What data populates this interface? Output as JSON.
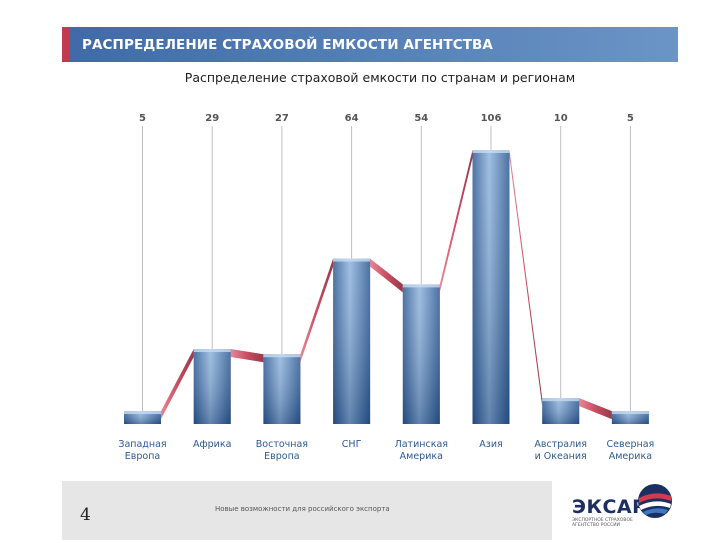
{
  "header": {
    "title": "РАСПРЕДЕЛЕНИЕ СТРАХОВОЙ ЕМКОСТИ АГЕНТСТВА"
  },
  "chart_data": {
    "type": "bar",
    "title": "Распределение страховой емкости по странам и регионам",
    "categories": [
      [
        "Западная",
        "Европа"
      ],
      [
        "Африка"
      ],
      [
        "Восточная",
        "Европа"
      ],
      [
        "СНГ"
      ],
      [
        "Латинская",
        "Америка"
      ],
      [
        "Азия"
      ],
      [
        "Австралия",
        "и Океания"
      ],
      [
        "Северная",
        "Америка"
      ]
    ],
    "values": [
      5,
      29,
      27,
      64,
      54,
      106,
      10,
      5
    ],
    "value_labels": [
      "5",
      "29",
      "27",
      "64",
      "54",
      "106",
      "10",
      "5"
    ],
    "ylim": [
      0,
      106
    ],
    "grid": false,
    "colors": {
      "bar": "#4f7fb8",
      "ribbon": "#c23a50",
      "leader": "#bfbfbf",
      "label": "#2e5a92"
    }
  },
  "footer": {
    "page_number": "4",
    "tagline": "Новые возможности для российского экспорта"
  },
  "logo": {
    "name": "ЭКСАР",
    "subtitle": "ЭКСПОРТНОЕ СТРАХОВОЕ АГЕНТСТВО РОССИИ"
  }
}
